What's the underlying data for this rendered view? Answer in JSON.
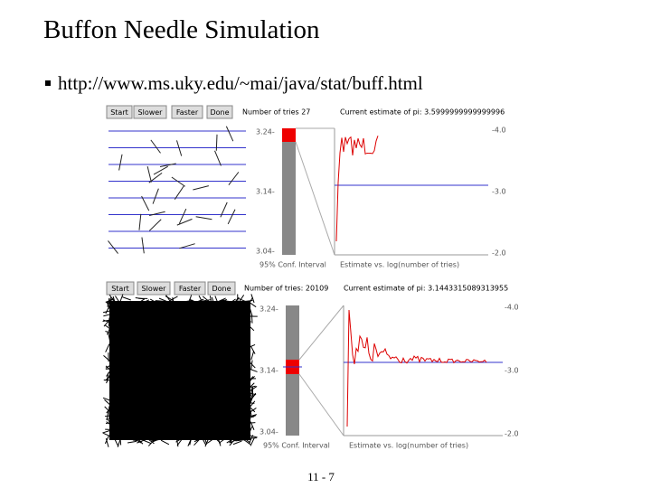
{
  "title": "Buffon Needle Simulation",
  "bullet": "http://www.ms.uky.edu/~mai/java/stat/buff.html",
  "applets": [
    {
      "buttons": [
        "Start",
        "Slower",
        "Faster",
        "Done"
      ],
      "tries": "Number of tries  27",
      "estimate": "Current estimate of pi: 3.5999999999999996",
      "left_ticks": [
        "3.24-",
        "3.14-",
        "3.04-"
      ],
      "right_ticks": [
        "-4.0",
        "-3.0",
        "-2.0"
      ],
      "interval_label": "95% Conf. Interval",
      "plot_label": "Estimate vs. log(number of tries)"
    },
    {
      "buttons": [
        "Start",
        "Slower",
        "Faster",
        "Done"
      ],
      "tries": "Number of tries: 20109",
      "estimate": "Current estimate of pi: 3.1443315089313955",
      "left_ticks": [
        "3.24-",
        "3.14-",
        "3.04-"
      ],
      "right_ticks": [
        "-4.0",
        "-3.0",
        "-2.0"
      ],
      "interval_label": "95% Conf. Interval",
      "plot_label": "Estimate vs. log(number of tries)"
    }
  ],
  "footer": "11 - 7"
}
